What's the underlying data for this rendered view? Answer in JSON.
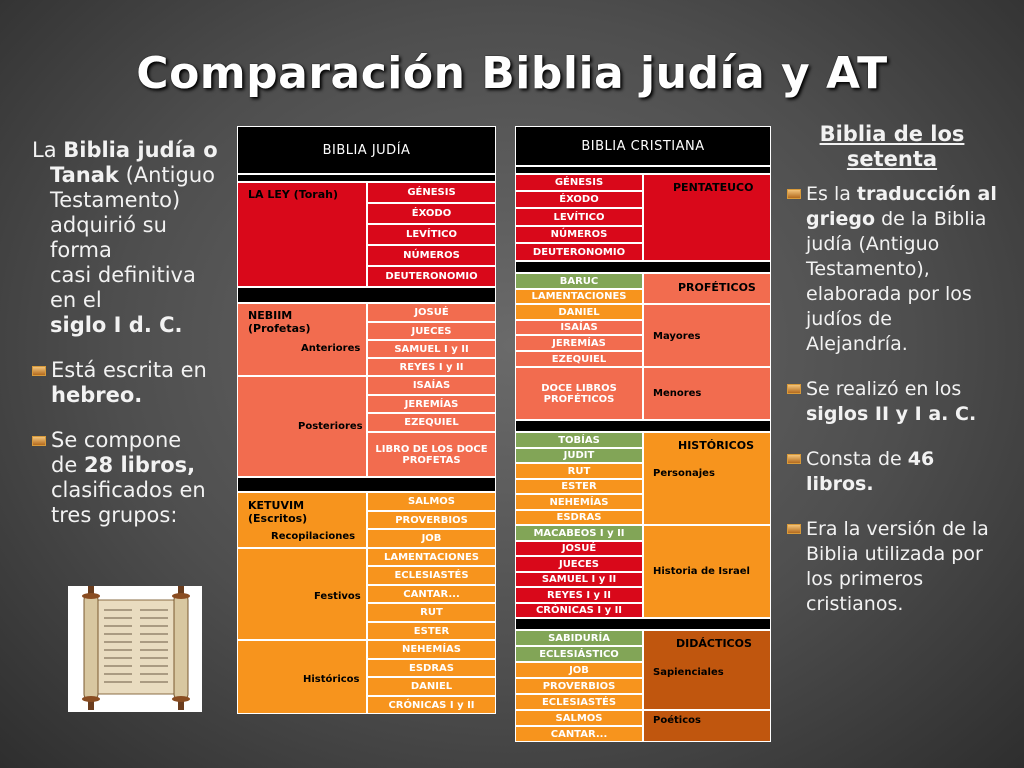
{
  "title": "Comparación Biblia judía y AT",
  "left": {
    "p1_a": "La ",
    "p1_b": "Biblia judía o",
    "p1_c": "Tanak",
    "p1_d": " (Antiguo",
    "p1_e": "Testamento)",
    "p1_f": "adquirió su",
    "p1_g": "forma",
    "p1_h": "casi definitiva",
    "p1_i": "en el",
    "p1_j": "siglo I d. C.",
    "b1_a": "Está escrita en",
    "b1_b": "hebreo.",
    "b2_a": "Se compone",
    "b2_b": "de ",
    "b2_c": "28 libros,",
    "b2_d": "clasificados en",
    "b2_e": "tres grupos:"
  },
  "right": {
    "heading_1": "Biblia de los",
    "heading_2": "setenta",
    "b1_a": "Es la ",
    "b1_b": "traducción al griego",
    "b1_c": " de la Biblia judía (Antiguo Testamento), elaborada por los judíos de Alejandría.",
    "b2_a": "Se realizó en los ",
    "b2_b": "siglos II y I a. C.",
    "b3_a": "Consta de ",
    "b3_b": "46 libros.",
    "b4": "Era la versión de la Biblia utilizada por los primeros cristianos."
  },
  "jewish": {
    "header": "BIBLIA JUDÍA",
    "ley_label": "LA LEY (Torah)",
    "ley_books": [
      "GÉNESIS",
      "ÉXODO",
      "LEVÍTICO",
      "NÚMEROS",
      "DEUTERONOMIO"
    ],
    "nebiim_label_1": "NEBIIM",
    "nebiim_label_2": "(Profetas)",
    "anteriores": "Anteriores",
    "anteriores_books": [
      "JOSUÉ",
      "JUECES",
      "SAMUEL I y II",
      "REYES I y II"
    ],
    "posteriores": "Posteriores",
    "posteriores_books": [
      "ISAÍAS",
      "JEREMÍAS",
      "EZEQUIEL",
      "LIBRO DE LOS DOCE PROFETAS"
    ],
    "ketuvim_label_1": "KETUVIM",
    "ketuvim_label_2": "(Escritos)",
    "recopilaciones": "Recopilaciones",
    "recopilaciones_books": [
      "SALMOS",
      "PROVERBIOS",
      "JOB"
    ],
    "festivos": "Festivos",
    "festivos_books": [
      "LAMENTACIONES",
      "ECLESIASTÉS",
      "CANTAR...",
      "RUT",
      "ESTER"
    ],
    "historicos": "Históricos",
    "historicos_books": [
      "NEHEMÍAS",
      "ESDRAS",
      "DANIEL",
      "CRÓNICAS I y II"
    ]
  },
  "christian": {
    "header": "BIBLIA CRISTIANA",
    "pentateuco": "PENTATEUCO",
    "pentateuco_books": [
      "GÉNESIS",
      "ÉXODO",
      "LEVÍTICO",
      "NÚMEROS",
      "DEUTERONOMIO"
    ],
    "profeticos": "PROFÉTICOS",
    "mayores": "Mayores",
    "mayores_books": [
      "BARUC",
      "LAMENTACIONES",
      "DANIEL",
      "ISAÍAS",
      "JEREMÍAS",
      "EZEQUIEL"
    ],
    "menores": "Menores",
    "menores_book": "DOCE LIBROS PROFÉTICOS",
    "historicos": "HISTÓRICOS",
    "personajes": "Personajes",
    "personajes_books": [
      "TOBÍAS",
      "JUDIT",
      "RUT",
      "ESTER",
      "NEHEMÍAS",
      "ESDRAS"
    ],
    "historia_israel": "Historia de Israel",
    "historia_books": [
      "MACABEOS I y II",
      "JOSUÉ",
      "JUECES",
      "SAMUEL I y II",
      "REYES I y II",
      "CRÓNICAS I y II"
    ],
    "didacticos": "DIDÁCTICOS",
    "sapienciales": "Sapienciales",
    "sapienciales_books": [
      "SABIDURÍA",
      "ECLESIÁSTICO",
      "JOB",
      "PROVERBIOS",
      "ECLESIASTÉS"
    ],
    "poeticos": "Poéticos",
    "poeticos_books": [
      "SALMOS",
      "CANTAR..."
    ]
  },
  "colors": {
    "red": "#d9081a",
    "salmon": "#f26c4f",
    "orange": "#f7941d",
    "green": "#82a557",
    "brown": "#c0560e",
    "bullet": "#e0a048"
  }
}
